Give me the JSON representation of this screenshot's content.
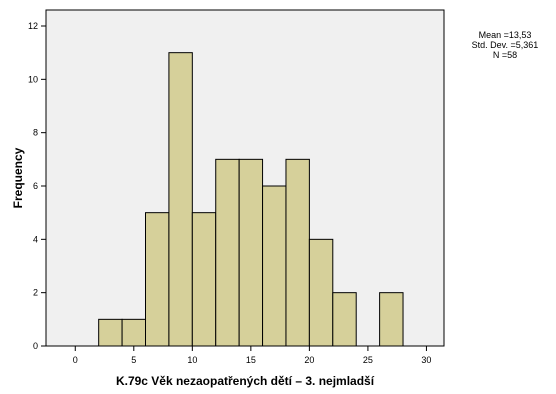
{
  "chart_data": {
    "type": "bar",
    "xlabel": "K.79c Věk nezaopatřených dětí – 3. nejmladší",
    "ylabel": "Frequency",
    "xlim": [
      -2.5,
      31.5
    ],
    "ylim": [
      0,
      12.6
    ],
    "xticks": [
      0,
      5,
      10,
      15,
      20,
      25,
      30
    ],
    "yticks": [
      0,
      2,
      4,
      6,
      8,
      10,
      12
    ],
    "grid": false,
    "bins": [
      {
        "start": 2,
        "end": 4,
        "count": 1
      },
      {
        "start": 4,
        "end": 6,
        "count": 1
      },
      {
        "start": 6,
        "end": 8,
        "count": 5
      },
      {
        "start": 8,
        "end": 10,
        "count": 11
      },
      {
        "start": 10,
        "end": 12,
        "count": 5
      },
      {
        "start": 12,
        "end": 14,
        "count": 7
      },
      {
        "start": 14,
        "end": 16,
        "count": 7
      },
      {
        "start": 16,
        "end": 18,
        "count": 6
      },
      {
        "start": 18,
        "end": 20,
        "count": 7
      },
      {
        "start": 20,
        "end": 22,
        "count": 4
      },
      {
        "start": 22,
        "end": 24,
        "count": 2
      },
      {
        "start": 24,
        "end": 26,
        "count": 0
      },
      {
        "start": 26,
        "end": 28,
        "count": 2
      }
    ],
    "stats": {
      "mean": "Mean =13,53",
      "std": "Std. Dev. =5,361",
      "n": "N =58"
    },
    "colors": {
      "bar_fill": "#d6d09a",
      "bar_stroke": "#000000",
      "plot_background": "#f0f0f0"
    }
  }
}
